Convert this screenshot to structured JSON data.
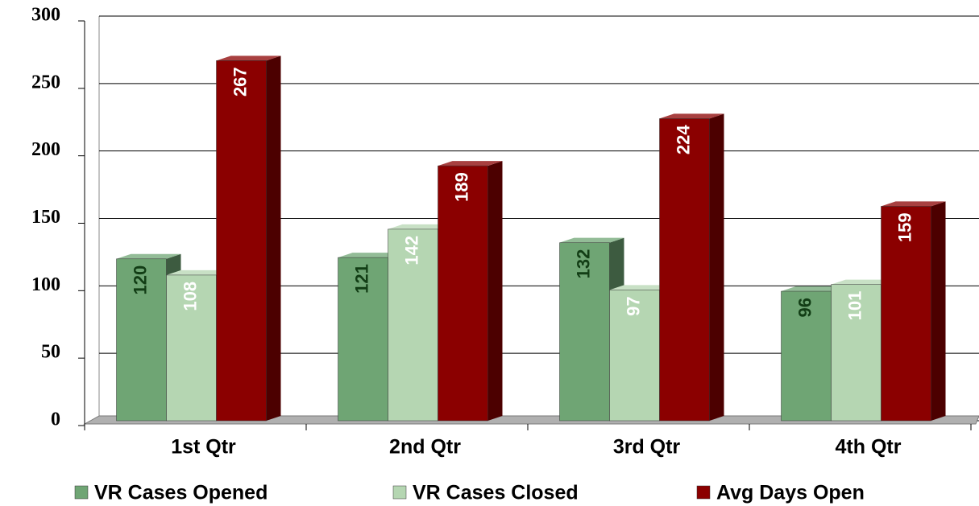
{
  "chart_data": {
    "type": "bar3d",
    "categories": [
      "1st Qtr",
      "2nd Qtr",
      "3rd Qtr",
      "4th Qtr"
    ],
    "series": [
      {
        "name": "VR Cases Opened",
        "color": "#6fa574",
        "values": [
          120,
          121,
          132,
          96
        ]
      },
      {
        "name": "VR Cases Closed",
        "color": "#b5d6b2",
        "values": [
          108,
          142,
          97,
          101
        ]
      },
      {
        "name": "Avg Days Open",
        "color": "#8b0000",
        "values": [
          267,
          189,
          224,
          159
        ]
      }
    ],
    "ylim": [
      0,
      300
    ],
    "yticks": [
      0,
      50,
      100,
      150,
      200,
      250,
      300
    ],
    "grid": true
  }
}
